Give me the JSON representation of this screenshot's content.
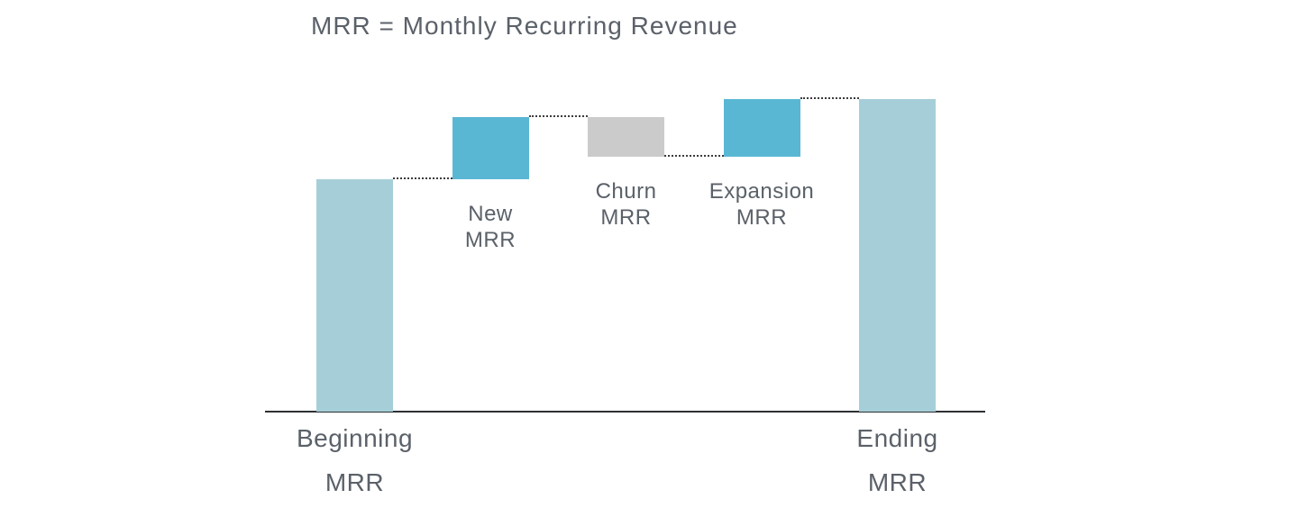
{
  "chart_data": {
    "type": "waterfall",
    "title": "MRR = Monthly Recurring Revenue",
    "categories": [
      "Beginning MRR",
      "New MRR",
      "Churn MRR",
      "Expansion MRR",
      "Ending MRR"
    ],
    "series": [
      {
        "name": "Beginning MRR",
        "label_lines": [
          "Beginning",
          "MRR"
        ],
        "kind": "total",
        "value": 258,
        "label_placement": "below-axis"
      },
      {
        "name": "New MRR",
        "label_lines": [
          "New",
          "MRR"
        ],
        "kind": "increase",
        "value": 69,
        "label_placement": "below-bar"
      },
      {
        "name": "Churn MRR",
        "label_lines": [
          "Churn",
          "MRR"
        ],
        "kind": "decrease",
        "value": -44,
        "label_placement": "below-bar"
      },
      {
        "name": "Expansion MRR",
        "label_lines": [
          "Expansion",
          "MRR"
        ],
        "kind": "increase",
        "value": 64,
        "label_placement": "below-bar"
      },
      {
        "name": "Ending MRR",
        "label_lines": [
          "Ending",
          "MRR"
        ],
        "kind": "total",
        "value": 347,
        "label_placement": "below-axis"
      }
    ],
    "value_units": "relative height units (chart displays no numeric axis; values estimated from bar heights)",
    "cumulative_check": "258 + 69 - 44 + 64 = 347",
    "colors": {
      "total_bar": "#a6ced8",
      "increase_bar": "#5ab7d4",
      "decrease_bar": "#cbcbcb",
      "connector": "#3c3c3c",
      "axis": "#2d3033",
      "text": "#5b6169"
    },
    "layout_hints": {
      "numeric_axis_visible": false,
      "gridlines": false,
      "legend": false,
      "connector_style": "dotted"
    }
  }
}
